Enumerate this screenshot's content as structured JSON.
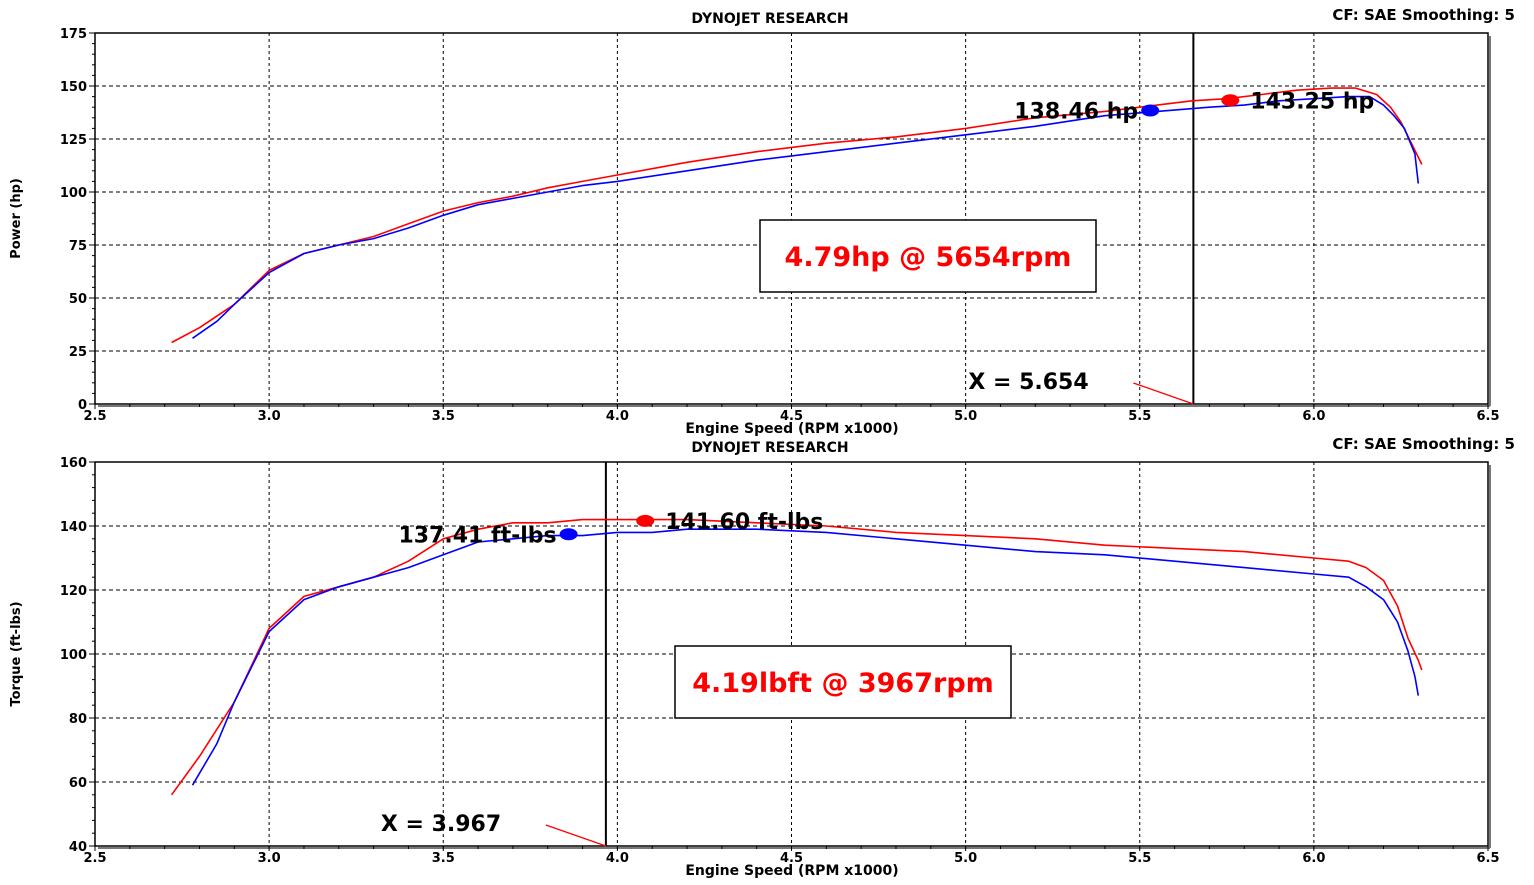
{
  "chart_data": [
    {
      "type": "line",
      "title": "DYNOJET RESEARCH",
      "corner_text": "CF: SAE   Smoothing: 5",
      "xlabel": "Engine Speed (RPM x1000)",
      "ylabel": "Power (hp)",
      "xlim": [
        2.5,
        6.5
      ],
      "ylim": [
        0,
        175
      ],
      "xticks": [
        "2.5",
        "3.0",
        "3.5",
        "4.0",
        "4.5",
        "5.0",
        "5.5",
        "6.0",
        "6.5"
      ],
      "yticks": [
        "0",
        "25",
        "50",
        "75",
        "100",
        "125",
        "150",
        "175"
      ],
      "grid": true,
      "colors": {
        "series_a": "#ff0000",
        "series_b": "#0000ff"
      },
      "series": [
        {
          "color": "#ff0000",
          "x": [
            2.72,
            2.8,
            2.9,
            3.0,
            3.1,
            3.2,
            3.3,
            3.4,
            3.5,
            3.6,
            3.7,
            3.8,
            3.9,
            4.0,
            4.2,
            4.4,
            4.6,
            4.8,
            5.0,
            5.2,
            5.4,
            5.55,
            5.65,
            5.75,
            5.85,
            5.95,
            6.05,
            6.12,
            6.18,
            6.22,
            6.25,
            6.28,
            6.31
          ],
          "y": [
            29,
            36,
            47,
            63,
            71,
            75,
            79,
            85,
            91,
            95,
            98,
            102,
            105,
            108,
            114,
            119,
            123,
            126,
            130,
            135,
            138,
            141,
            143,
            144,
            146,
            148,
            149,
            149,
            146,
            140,
            133,
            123,
            113
          ]
        },
        {
          "color": "#0000ff",
          "x": [
            2.78,
            2.85,
            2.9,
            3.0,
            3.1,
            3.2,
            3.3,
            3.4,
            3.5,
            3.6,
            3.7,
            3.8,
            3.9,
            4.0,
            4.2,
            4.4,
            4.6,
            4.8,
            5.0,
            5.2,
            5.4,
            5.55,
            5.7,
            5.8,
            5.9,
            6.0,
            6.1,
            6.16,
            6.2,
            6.23,
            6.26,
            6.29,
            6.3
          ],
          "y": [
            31,
            39,
            47,
            62,
            71,
            75,
            78,
            83,
            89,
            94,
            97,
            100,
            103,
            105,
            110,
            115,
            119,
            123,
            127,
            131,
            136,
            138,
            140,
            141,
            143,
            144,
            145,
            145,
            141,
            136,
            130,
            118,
            104
          ]
        }
      ],
      "markers": [
        {
          "color": "#0000ff",
          "x": 5.53,
          "y": 138.46,
          "label": "138.46 hp"
        },
        {
          "color": "#ff0000",
          "x": 5.76,
          "y": 143.25,
          "label": "143.25 hp"
        }
      ],
      "cursor": {
        "x": 5.654,
        "label": "X = 5.654"
      },
      "annotation": "4.79hp @ 5654rpm"
    },
    {
      "type": "line",
      "title": "DYNOJET RESEARCH",
      "corner_text": "CF: SAE   Smoothing: 5",
      "xlabel": "Engine Speed (RPM x1000)",
      "ylabel": "Torque (ft-lbs)",
      "xlim": [
        2.5,
        6.5
      ],
      "ylim": [
        40,
        160
      ],
      "xticks": [
        "2.5",
        "3.0",
        "3.5",
        "4.0",
        "4.5",
        "5.0",
        "5.5",
        "6.0",
        "6.5"
      ],
      "yticks": [
        "40",
        "60",
        "80",
        "100",
        "120",
        "140",
        "160"
      ],
      "grid": true,
      "colors": {
        "series_a": "#ff0000",
        "series_b": "#0000ff"
      },
      "series": [
        {
          "color": "#ff0000",
          "x": [
            2.72,
            2.8,
            2.9,
            3.0,
            3.1,
            3.2,
            3.3,
            3.4,
            3.5,
            3.6,
            3.7,
            3.8,
            3.9,
            4.0,
            4.1,
            4.2,
            4.4,
            4.6,
            4.8,
            5.0,
            5.2,
            5.4,
            5.6,
            5.8,
            6.0,
            6.1,
            6.15,
            6.2,
            6.24,
            6.27,
            6.3,
            6.31
          ],
          "y": [
            56,
            68,
            85,
            108,
            118,
            121,
            124,
            129,
            136,
            139,
            141,
            141,
            142,
            142,
            142,
            142,
            141,
            140,
            138,
            137,
            136,
            134,
            133,
            132,
            130,
            129,
            127,
            123,
            115,
            105,
            98,
            95
          ]
        },
        {
          "color": "#0000ff",
          "x": [
            2.78,
            2.85,
            2.9,
            3.0,
            3.1,
            3.2,
            3.3,
            3.4,
            3.5,
            3.6,
            3.7,
            3.8,
            3.9,
            4.0,
            4.1,
            4.2,
            4.4,
            4.6,
            4.8,
            5.0,
            5.2,
            5.4,
            5.6,
            5.8,
            6.0,
            6.1,
            6.15,
            6.2,
            6.24,
            6.27,
            6.29,
            6.3
          ],
          "y": [
            59,
            72,
            85,
            107,
            117,
            121,
            124,
            127,
            131,
            135,
            136,
            137,
            137,
            138,
            138,
            139,
            139,
            138,
            136,
            134,
            132,
            131,
            129,
            127,
            125,
            124,
            121,
            117,
            110,
            101,
            93,
            87
          ]
        }
      ],
      "markers": [
        {
          "color": "#0000ff",
          "x": 3.86,
          "y": 137.41,
          "label": "137.41 ft-lbs"
        },
        {
          "color": "#ff0000",
          "x": 4.08,
          "y": 141.6,
          "label": "141.60 ft-lbs"
        }
      ],
      "cursor": {
        "x": 3.967,
        "label": "X = 3.967"
      },
      "annotation": "4.19lbft @ 3967rpm"
    }
  ]
}
